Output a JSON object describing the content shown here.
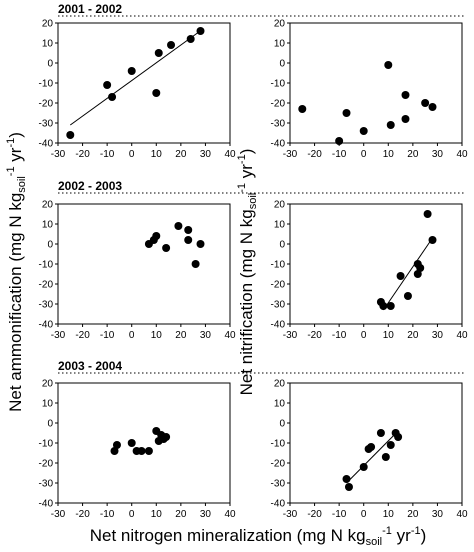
{
  "xlabel": {
    "base": "Net nitrogen mineralization (mg N kg",
    "sub": "soil",
    "sup1": "-1",
    "mid": " yr",
    "sup2": "-1",
    "end": ")"
  },
  "ylabel_left": {
    "base": "Net ammonification (mg N kg",
    "sub": "soil",
    "sup1": "-1",
    "mid": " yr",
    "sup2": "-1",
    "end": ")"
  },
  "ylabel_right": {
    "base": "Net nitrification (mg N kg",
    "sub": "soil",
    "sup1": "-1",
    "mid": " yr",
    "sup2": "-1",
    "end": ")"
  },
  "rows": [
    {
      "title": "2001 - 2002"
    },
    {
      "title": "2002 - 2003"
    },
    {
      "title": "2003 - 2004"
    }
  ],
  "axes": {
    "x_ticks": [
      "-30",
      "-20",
      "-10",
      "0",
      "10",
      "20",
      "30",
      "40"
    ],
    "y_ticks": [
      "20",
      "10",
      "0",
      "-10",
      "-20",
      "-30",
      "-40"
    ]
  },
  "chart_data": [
    {
      "type": "scatter",
      "row": "2001 - 2002",
      "side": "ammonification",
      "xlim": [
        -30,
        40
      ],
      "ylim": [
        -40,
        20
      ],
      "points": [
        [
          -25,
          -36
        ],
        [
          -10,
          -11
        ],
        [
          -8,
          -17
        ],
        [
          0,
          -4
        ],
        [
          10,
          -15
        ],
        [
          11,
          5
        ],
        [
          16,
          9
        ],
        [
          24,
          12
        ],
        [
          28,
          16
        ]
      ],
      "fit": [
        [
          -25,
          -31
        ],
        [
          29,
          17
        ]
      ]
    },
    {
      "type": "scatter",
      "row": "2001 - 2002",
      "side": "nitrification",
      "xlim": [
        -30,
        40
      ],
      "ylim": [
        -40,
        20
      ],
      "points": [
        [
          -25,
          -23
        ],
        [
          -10,
          -39
        ],
        [
          -7,
          -25
        ],
        [
          0,
          -34
        ],
        [
          10,
          -1
        ],
        [
          11,
          -31
        ],
        [
          17,
          -16
        ],
        [
          17,
          -28
        ],
        [
          25,
          -20
        ],
        [
          28,
          -22
        ]
      ],
      "fit": null
    },
    {
      "type": "scatter",
      "row": "2002 - 2003",
      "side": "ammonification",
      "xlim": [
        -30,
        40
      ],
      "ylim": [
        -40,
        20
      ],
      "points": [
        [
          7,
          0
        ],
        [
          9,
          2
        ],
        [
          10,
          4
        ],
        [
          14,
          -2
        ],
        [
          19,
          9
        ],
        [
          23,
          7
        ],
        [
          23,
          2
        ],
        [
          26,
          -10
        ],
        [
          28,
          0
        ]
      ],
      "fit": null
    },
    {
      "type": "scatter",
      "row": "2002 - 2003",
      "side": "nitrification",
      "xlim": [
        -30,
        40
      ],
      "ylim": [
        -40,
        20
      ],
      "points": [
        [
          7,
          -29
        ],
        [
          8,
          -31
        ],
        [
          11,
          -31
        ],
        [
          15,
          -16
        ],
        [
          18,
          -26
        ],
        [
          22,
          -15
        ],
        [
          22,
          -10
        ],
        [
          23,
          -12
        ],
        [
          26,
          15
        ],
        [
          28,
          2
        ]
      ],
      "fit": [
        [
          8,
          -33
        ],
        [
          28,
          3
        ]
      ]
    },
    {
      "type": "scatter",
      "row": "2003 - 2004",
      "side": "ammonification",
      "xlim": [
        -30,
        40
      ],
      "ylim": [
        -40,
        20
      ],
      "points": [
        [
          -7,
          -14
        ],
        [
          -6,
          -11
        ],
        [
          0,
          -10
        ],
        [
          2,
          -14
        ],
        [
          4,
          -14
        ],
        [
          7,
          -14
        ],
        [
          10,
          -4
        ],
        [
          11,
          -9
        ],
        [
          12,
          -6
        ],
        [
          13,
          -8
        ],
        [
          14,
          -7
        ]
      ],
      "fit": null
    },
    {
      "type": "scatter",
      "row": "2003 - 2004",
      "side": "nitrification",
      "xlim": [
        -30,
        40
      ],
      "ylim": [
        -40,
        20
      ],
      "points": [
        [
          -7,
          -28
        ],
        [
          -6,
          -32
        ],
        [
          0,
          -22
        ],
        [
          2,
          -13
        ],
        [
          3,
          -12
        ],
        [
          7,
          -5
        ],
        [
          9,
          -17
        ],
        [
          11,
          -11
        ],
        [
          13,
          -5
        ],
        [
          14,
          -7
        ]
      ],
      "fit": [
        [
          -7,
          -30
        ],
        [
          14,
          -4
        ]
      ]
    }
  ]
}
